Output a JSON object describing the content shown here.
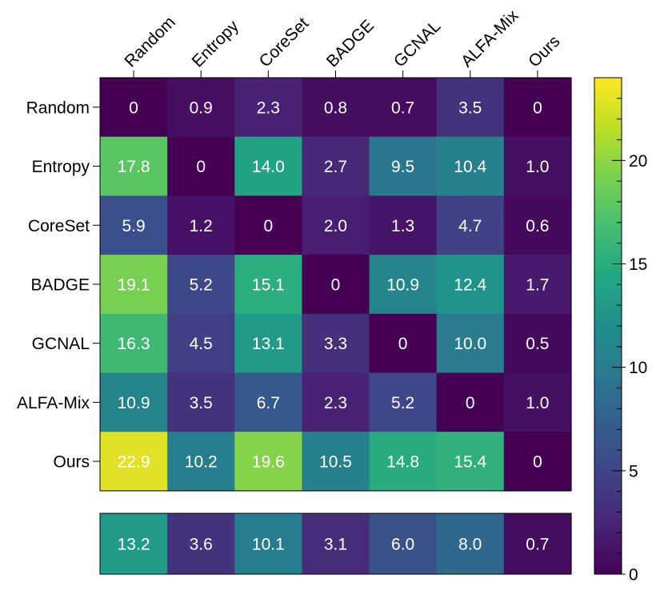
{
  "chart_data": {
    "type": "heatmap",
    "columns": [
      "Random",
      "Entropy",
      "CoreSet",
      "BADGE",
      "GCNAL",
      "ALFA-Mix",
      "Ours"
    ],
    "rows": [
      "Random",
      "Entropy",
      "CoreSet",
      "BADGE",
      "GCNAL",
      "ALFA-Mix",
      "Ours"
    ],
    "values": [
      [
        0,
        0.9,
        2.3,
        0.8,
        0.7,
        3.5,
        0
      ],
      [
        17.8,
        0,
        14.0,
        2.7,
        9.5,
        10.4,
        1.0
      ],
      [
        5.9,
        1.2,
        0,
        2.0,
        1.3,
        4.7,
        0.6
      ],
      [
        19.1,
        5.2,
        15.1,
        0,
        10.9,
        12.4,
        1.7
      ],
      [
        16.3,
        4.5,
        13.1,
        3.3,
        0,
        10.0,
        0.5
      ],
      [
        10.9,
        3.5,
        6.7,
        2.3,
        5.2,
        0,
        1.0
      ],
      [
        22.9,
        10.2,
        19.6,
        10.5,
        14.8,
        15.4,
        0
      ]
    ],
    "labels": [
      [
        "0",
        "0.9",
        "2.3",
        "0.8",
        "0.7",
        "3.5",
        "0"
      ],
      [
        "17.8",
        "0",
        "14.0",
        "2.7",
        "9.5",
        "10.4",
        "1.0"
      ],
      [
        "5.9",
        "1.2",
        "0",
        "2.0",
        "1.3",
        "4.7",
        "0.6"
      ],
      [
        "19.1",
        "5.2",
        "15.1",
        "0",
        "10.9",
        "12.4",
        "1.7"
      ],
      [
        "16.3",
        "4.5",
        "13.1",
        "3.3",
        "0",
        "10.0",
        "0.5"
      ],
      [
        "10.9",
        "3.5",
        "6.7",
        "2.3",
        "5.2",
        "0",
        "1.0"
      ],
      [
        "22.9",
        "10.2",
        "19.6",
        "10.5",
        "14.8",
        "15.4",
        "0"
      ]
    ],
    "summary_row": {
      "values": [
        13.2,
        3.6,
        10.1,
        3.1,
        6.0,
        8.0,
        0.7
      ],
      "labels": [
        "13.2",
        "3.6",
        "10.1",
        "3.1",
        "6.0",
        "8.0",
        "0.7"
      ]
    },
    "colorbar": {
      "colormap": "viridis",
      "range": [
        0,
        24
      ],
      "ticks": [
        0,
        5,
        10,
        15,
        20
      ],
      "tick_labels": [
        "0",
        "5",
        "10",
        "15",
        "20"
      ],
      "minor_step": 1
    },
    "title": "",
    "xlabel": "",
    "ylabel": ""
  }
}
